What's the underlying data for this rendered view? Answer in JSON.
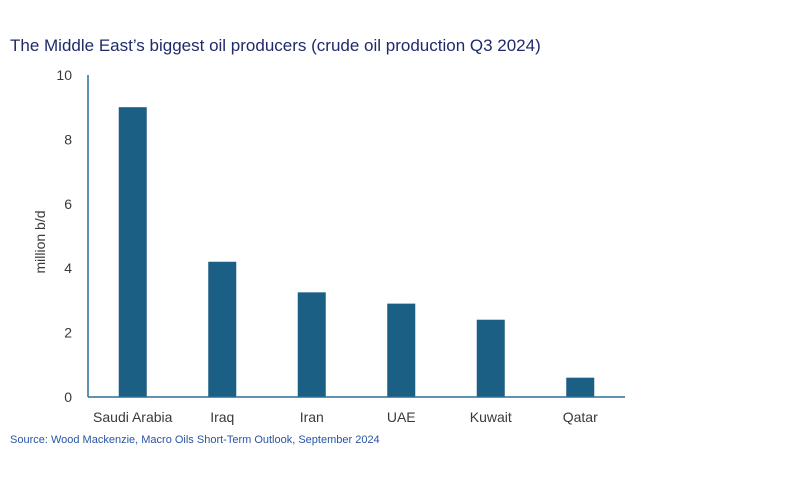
{
  "title": "The Middle East’s biggest oil producers (crude oil production Q3 2024)",
  "source": "Source: Wood Mackenzie, Macro Oils Short-Term Outlook, September 2024",
  "colors": {
    "bar": "#1b5f84",
    "axis": "#2e6f96",
    "title": "#1f2a6b",
    "source": "#2a54a6"
  },
  "chart_data": {
    "type": "bar",
    "title": "The Middle East’s biggest oil producers (crude oil production Q3 2024)",
    "xlabel": "",
    "ylabel": "million b/d",
    "categories": [
      "Saudi Arabia",
      "Iraq",
      "Iran",
      "UAE",
      "Kuwait",
      "Qatar"
    ],
    "values": [
      9.0,
      4.2,
      3.25,
      2.9,
      2.4,
      0.6
    ],
    "ylim": [
      0,
      10
    ],
    "yticks": [
      0,
      2,
      4,
      6,
      8,
      10
    ],
    "grid": false,
    "legend": "none"
  }
}
